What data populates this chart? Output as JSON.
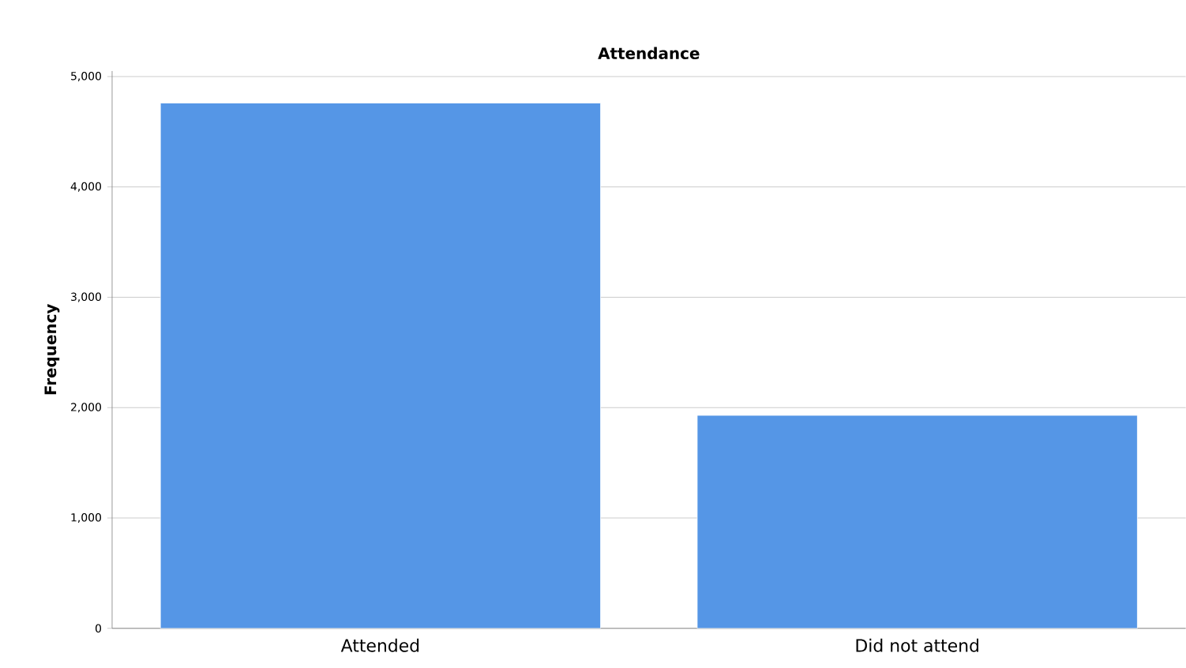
{
  "chart_data": {
    "type": "bar",
    "title": "Attendance",
    "ylabel": "Frequency",
    "categories": [
      "Attended",
      "Did not attend"
    ],
    "values": [
      4760,
      1930
    ],
    "color": "#5596e6",
    "ylim": [
      0,
      5050
    ],
    "yticks": [
      0,
      {
        "value": 1000,
        "label": "1,000"
      },
      {
        "value": 2000,
        "label": "2,000"
      },
      {
        "value": 3000,
        "label": "3,000"
      },
      {
        "value": 4000,
        "label": "4,000"
      },
      {
        "value": 5000,
        "label": "5,000"
      }
    ],
    "grid": "y"
  }
}
